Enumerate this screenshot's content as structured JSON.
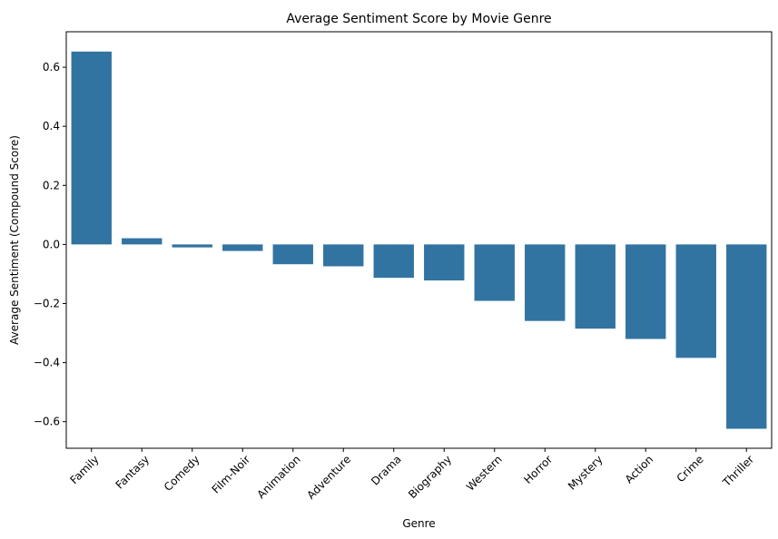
{
  "chart_data": {
    "type": "bar",
    "title": "Average Sentiment Score by Movie Genre",
    "xlabel": "Genre",
    "ylabel": "Average Sentiment (Compound Score)",
    "categories": [
      "Family",
      "Fantasy",
      "Comedy",
      "Film-Noir",
      "Animation",
      "Adventure",
      "Drama",
      "Biography",
      "Western",
      "Horror",
      "Mystery",
      "Action",
      "Crime",
      "Thriller"
    ],
    "values": [
      0.653,
      0.021,
      -0.01,
      -0.022,
      -0.067,
      -0.074,
      -0.113,
      -0.122,
      -0.191,
      -0.259,
      -0.285,
      -0.32,
      -0.384,
      -0.624
    ],
    "ylim": [
      -0.69,
      0.72
    ],
    "yticks": [
      -0.6,
      -0.4,
      -0.2,
      0.0,
      0.2,
      0.4,
      0.6
    ],
    "ytick_labels": [
      "−0.6",
      "−0.4",
      "−0.2",
      "0.0",
      "0.2",
      "0.4",
      "0.6"
    ],
    "bar_color": "#3274a1",
    "grid": false,
    "legend": "none"
  }
}
